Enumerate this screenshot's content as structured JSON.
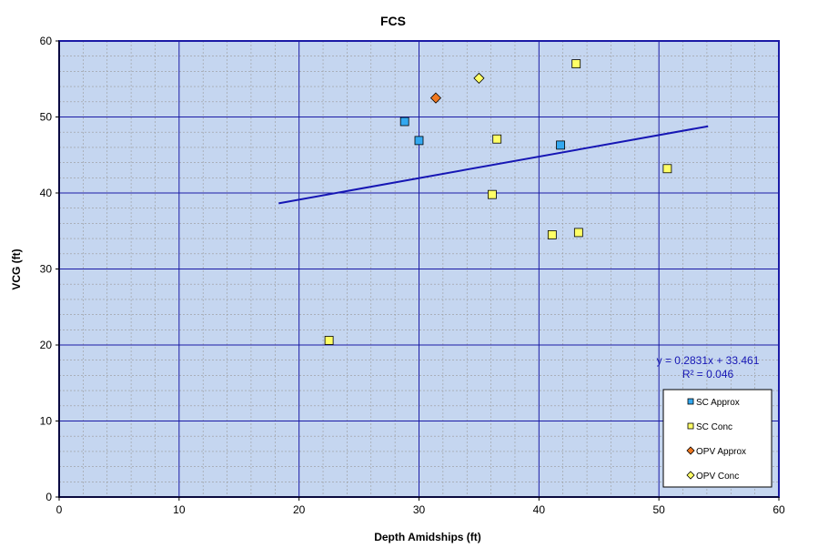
{
  "chart_data": {
    "type": "scatter",
    "title": "FCS",
    "xlabel": "Depth Amidships  (ft)",
    "ylabel": "VCG  (ft)",
    "xlim": [
      0,
      60
    ],
    "ylim": [
      0,
      60
    ],
    "x_ticks": [
      0,
      10,
      20,
      30,
      40,
      50,
      60
    ],
    "y_ticks": [
      0,
      10,
      20,
      30,
      40,
      50,
      60
    ],
    "grid": true,
    "legend_position": "bottom-right",
    "colors": {
      "plot_background": "#c5d6f0",
      "major_grid": "#1a1aa6",
      "minor_grid": "#9a9a9a",
      "trendline": "#1616b4",
      "frame": "#1a1aa6"
    },
    "series": [
      {
        "name": "SC Approx",
        "marker": "square",
        "color": "#33a8f0",
        "points": [
          {
            "x": 28.8,
            "y": 49.4
          },
          {
            "x": 30.0,
            "y": 46.9
          },
          {
            "x": 41.8,
            "y": 46.3
          }
        ]
      },
      {
        "name": "SC Conc",
        "marker": "square",
        "color": "#ffff66",
        "points": [
          {
            "x": 43.1,
            "y": 57.0
          },
          {
            "x": 36.5,
            "y": 47.1
          },
          {
            "x": 50.7,
            "y": 43.2
          },
          {
            "x": 36.1,
            "y": 39.8
          },
          {
            "x": 41.1,
            "y": 34.5
          },
          {
            "x": 43.3,
            "y": 34.8
          },
          {
            "x": 22.5,
            "y": 20.6
          }
        ]
      },
      {
        "name": "OPV Approx",
        "marker": "diamond",
        "color": "#f07820",
        "points": [
          {
            "x": 31.4,
            "y": 52.5
          }
        ]
      },
      {
        "name": "OPV Conc",
        "marker": "diamond",
        "color": "#ffff66",
        "points": [
          {
            "x": 35.0,
            "y": 55.1
          }
        ]
      }
    ],
    "trendline": {
      "slope": 0.2831,
      "intercept": 33.461,
      "x_range": [
        18.3,
        54.1
      ],
      "equation": "y = 0.2831x + 33.461",
      "r_squared": "R² = 0.046"
    }
  }
}
